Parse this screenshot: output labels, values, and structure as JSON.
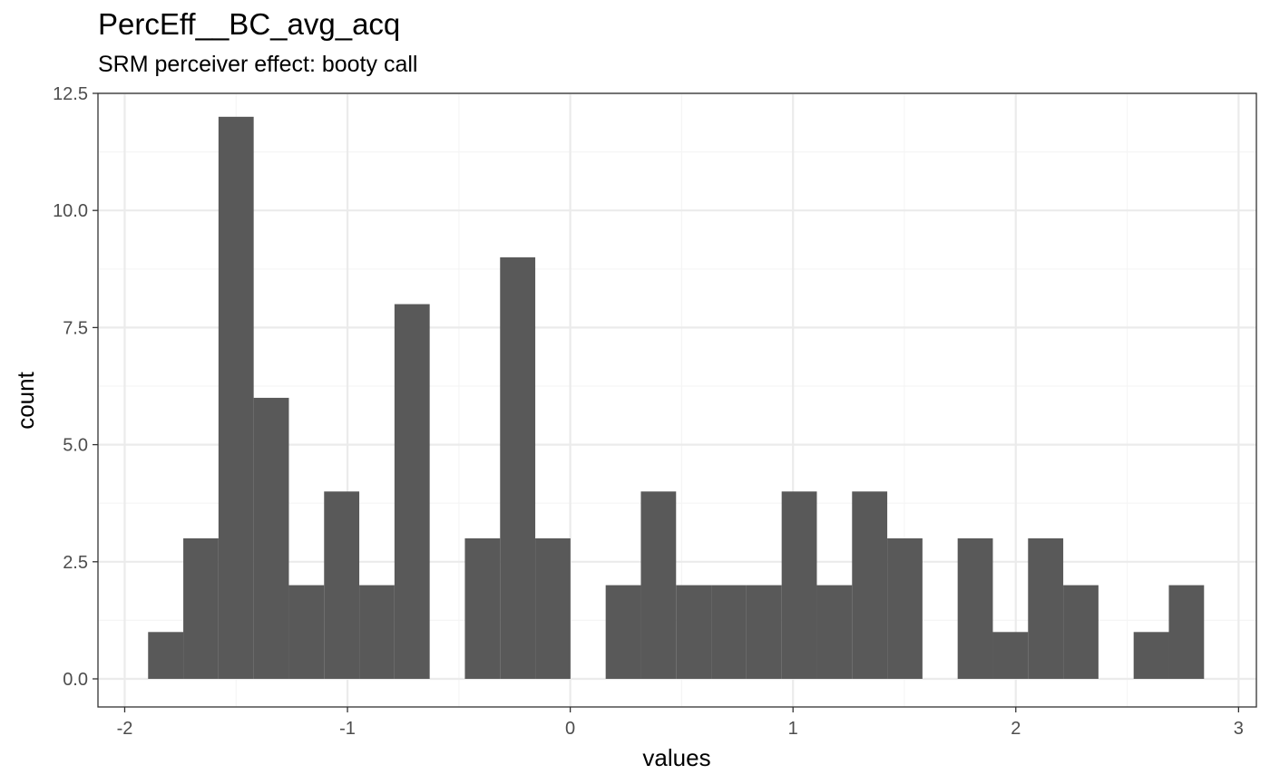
{
  "chart_data": {
    "type": "bar",
    "title": "PercEff__BC_avg_acq",
    "subtitle": "SRM perceiver effect: booty call",
    "xlabel": "values",
    "ylabel": "count",
    "xlim": [
      -2.12,
      3.08
    ],
    "ylim": [
      -0.6,
      12.5
    ],
    "x_ticks": [
      -2,
      -1,
      0,
      1,
      2,
      3
    ],
    "x_tick_labels": [
      "-2",
      "-1",
      "0",
      "1",
      "2",
      "3"
    ],
    "y_ticks": [
      0,
      2.5,
      5,
      7.5,
      10,
      12.5
    ],
    "y_tick_labels": [
      "0.0",
      "2.5",
      "5.0",
      "7.5",
      "10.0",
      "12.5"
    ],
    "grid": true,
    "bin_width": 0.158,
    "bins": [
      {
        "x": -1.816,
        "count": 1
      },
      {
        "x": -1.658,
        "count": 3
      },
      {
        "x": -1.5,
        "count": 12
      },
      {
        "x": -1.342,
        "count": 6
      },
      {
        "x": -1.184,
        "count": 2
      },
      {
        "x": -1.026,
        "count": 4
      },
      {
        "x": -0.868,
        "count": 2
      },
      {
        "x": -0.71,
        "count": 8
      },
      {
        "x": -0.552,
        "count": 0
      },
      {
        "x": -0.394,
        "count": 3
      },
      {
        "x": -0.236,
        "count": 9
      },
      {
        "x": -0.078,
        "count": 3
      },
      {
        "x": 0.08,
        "count": 0
      },
      {
        "x": 0.238,
        "count": 2
      },
      {
        "x": 0.396,
        "count": 4
      },
      {
        "x": 0.554,
        "count": 2
      },
      {
        "x": 0.712,
        "count": 2
      },
      {
        "x": 0.87,
        "count": 2
      },
      {
        "x": 1.028,
        "count": 4
      },
      {
        "x": 1.186,
        "count": 2
      },
      {
        "x": 1.344,
        "count": 4
      },
      {
        "x": 1.502,
        "count": 3
      },
      {
        "x": 1.66,
        "count": 0
      },
      {
        "x": 1.818,
        "count": 3
      },
      {
        "x": 1.976,
        "count": 1
      },
      {
        "x": 2.134,
        "count": 3
      },
      {
        "x": 2.292,
        "count": 2
      },
      {
        "x": 2.45,
        "count": 0
      },
      {
        "x": 2.608,
        "count": 1
      },
      {
        "x": 2.766,
        "count": 2
      }
    ],
    "colors": {
      "bar": "#595959",
      "panel_border": "#333333",
      "grid_major": "#ebebeb",
      "grid_minor": "#f5f5f5",
      "tick_text": "#4d4d4d"
    }
  }
}
